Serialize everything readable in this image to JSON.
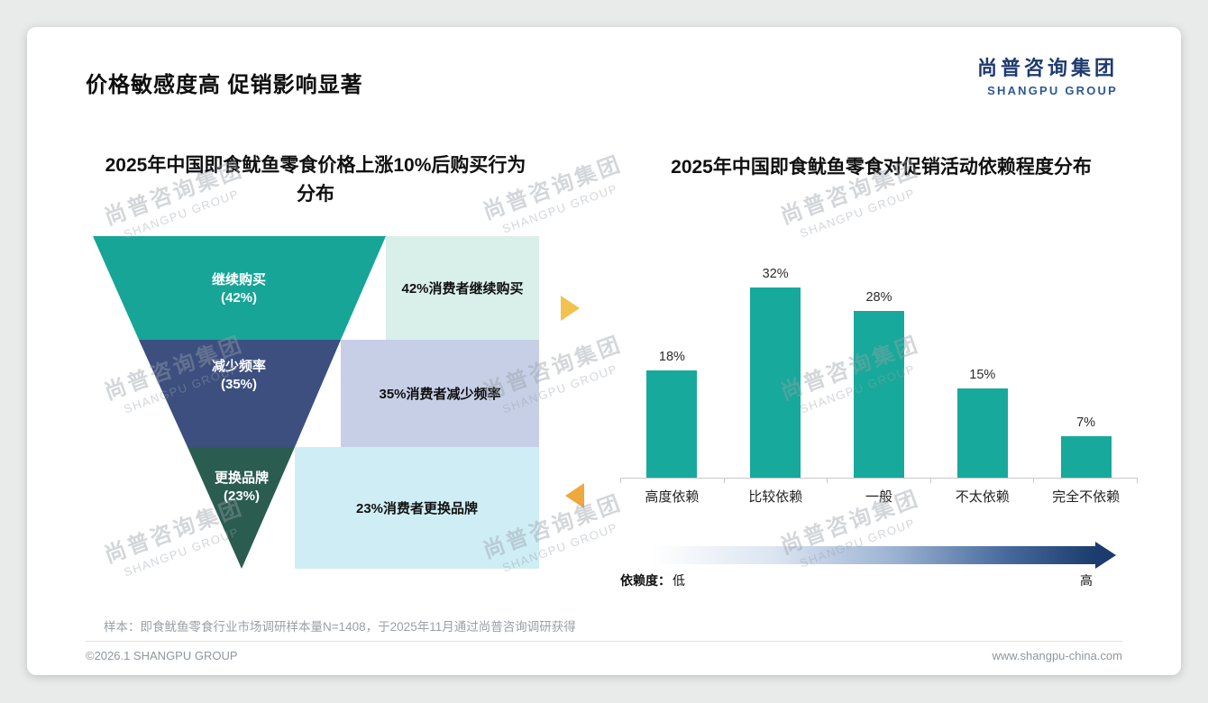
{
  "page": {
    "title": "价格敏感度高 促销影响显著",
    "watermark_cn": "尚普咨询集团",
    "watermark_en": "SHANGPU GROUP"
  },
  "logo": {
    "cn": "尚普咨询集团",
    "en": "SHANGPU GROUP"
  },
  "chart_data": [
    {
      "type": "funnel",
      "title": "2025年中国即食鱿鱼零食价格上涨10%后购买行为分布",
      "title_lines": [
        "2025年中国即食鱿鱼零食价格上涨10%后购买行为",
        "分布"
      ],
      "categories": [
        "继续购买",
        "减少频率",
        "更换品牌"
      ],
      "values": [
        42,
        35,
        23
      ],
      "stage_labels": [
        "继续购买",
        "减少频率",
        "更换品牌"
      ],
      "stage_value_labels": [
        "(42%)",
        "(35%)",
        "(23%)"
      ],
      "annotations": [
        "42%消费者继续购买",
        "35%消费者减少频率",
        "23%消费者更换品牌"
      ],
      "colors": [
        "#16a596",
        "#3c4f7f",
        "#2b5c50"
      ],
      "annotation_colors": [
        "#d9efe9",
        "#c6cfe5",
        "#cfedf5"
      ]
    },
    {
      "type": "bar",
      "title": "2025年中国即食鱿鱼零食对促销活动依赖程度分布",
      "categories": [
        "高度依赖",
        "比较依赖",
        "一般",
        "不太依赖",
        "完全不依赖"
      ],
      "values": [
        18,
        32,
        28,
        15,
        7
      ],
      "value_labels": [
        "18%",
        "32%",
        "28%",
        "15%",
        "7%"
      ],
      "ylim": [
        0,
        35
      ],
      "bar_color": "#17a99b",
      "grid": "off",
      "legend": "none",
      "dependency_axis": {
        "label": "依赖度：",
        "low": "低",
        "high": "高"
      }
    }
  ],
  "footnote": "样本：即食鱿鱼零食行业市场调研样本量N=1408，于2025年11月通过尚普咨询调研获得",
  "footer": {
    "left": "©2026.1 SHANGPU GROUP",
    "right": "www.shangpu-china.com"
  }
}
